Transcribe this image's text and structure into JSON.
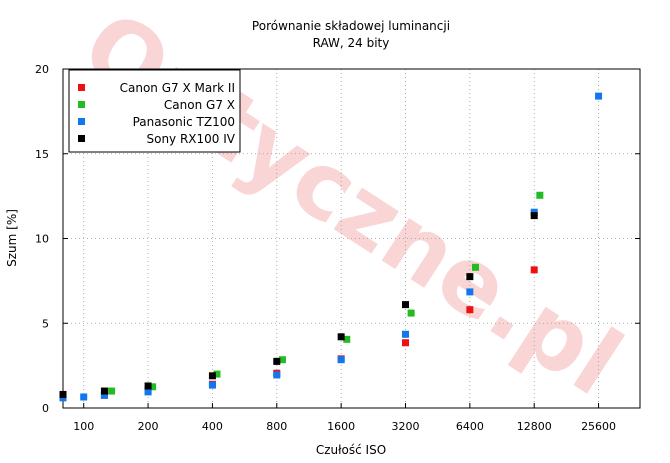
{
  "chart_data": {
    "type": "scatter",
    "title": "Porównanie składowej luminancji",
    "subtitle": "RAW, 24 bity",
    "xlabel": "Czułość ISO",
    "ylabel": "Szum [%]",
    "x_scale": "log2",
    "xlim": [
      80,
      40000
    ],
    "ylim": [
      0,
      20
    ],
    "x_ticks": [
      100,
      200,
      400,
      800,
      1600,
      3200,
      6400,
      12800,
      25600
    ],
    "y_ticks": [
      0,
      5,
      10,
      15,
      20
    ],
    "grid": true,
    "legend_position": "top-left",
    "watermark": "Optyczne.pl",
    "series": [
      {
        "name": "Canon G7 X Mark II",
        "color": "#ee1111",
        "points": [
          [
            125,
            0.75
          ],
          [
            200,
            1.05
          ],
          [
            400,
            1.4
          ],
          [
            800,
            2.05
          ],
          [
            1600,
            2.9
          ],
          [
            3200,
            3.85
          ],
          [
            6400,
            5.8
          ],
          [
            12800,
            8.15
          ]
        ]
      },
      {
        "name": "Canon G7 X",
        "color": "#22bb22",
        "points": [
          [
            135,
            1.0
          ],
          [
            210,
            1.25
          ],
          [
            420,
            2.0
          ],
          [
            850,
            2.85
          ],
          [
            1700,
            4.05
          ],
          [
            3400,
            5.6
          ],
          [
            6800,
            8.3
          ],
          [
            13600,
            12.55
          ]
        ]
      },
      {
        "name": "Panasonic TZ100",
        "color": "#1177ee",
        "points": [
          [
            80,
            0.6
          ],
          [
            100,
            0.65
          ],
          [
            125,
            0.75
          ],
          [
            200,
            0.95
          ],
          [
            400,
            1.35
          ],
          [
            800,
            1.95
          ],
          [
            1600,
            2.85
          ],
          [
            3200,
            4.35
          ],
          [
            6400,
            6.85
          ],
          [
            12800,
            11.55
          ],
          [
            25600,
            18.4
          ]
        ]
      },
      {
        "name": "Sony RX100 IV",
        "color": "#000000",
        "points": [
          [
            80,
            0.8
          ],
          [
            125,
            1.0
          ],
          [
            200,
            1.3
          ],
          [
            400,
            1.9
          ],
          [
            800,
            2.75
          ],
          [
            1600,
            4.2
          ],
          [
            3200,
            6.1
          ],
          [
            6400,
            7.75
          ],
          [
            12800,
            11.35
          ]
        ]
      }
    ]
  }
}
